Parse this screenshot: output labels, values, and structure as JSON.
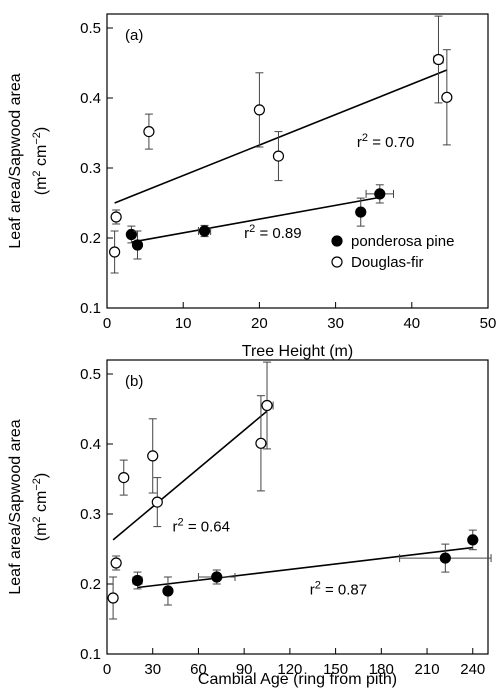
{
  "chart_data": [
    {
      "type": "scatter",
      "panel_label": "(a)",
      "xlabel": "Tree Height (m)",
      "ylabel_line1": "Leaf area/Sapwood area",
      "ylabel_line2": "(m",
      "ylabel_unit_a": "2",
      "ylabel_unit_b": " cm",
      "ylabel_unit_c": "−2",
      "ylabel_close": ")",
      "xlim": [
        0,
        50
      ],
      "ylim": [
        0.1,
        0.52
      ],
      "xticks": [
        0,
        10,
        20,
        30,
        40,
        50
      ],
      "xtick_labels": [
        "0",
        "10",
        "20",
        "30",
        "40",
        "50"
      ],
      "yticks": [
        0.1,
        0.2,
        0.3,
        0.4,
        0.5
      ],
      "ytick_labels": [
        "0.1",
        "0.2",
        "0.3",
        "0.4",
        "0.5"
      ],
      "legend": {
        "placement": "bottom-right",
        "entries": [
          {
            "name": "ponderosa pine",
            "marker": "filled"
          },
          {
            "name": "Douglas-fir",
            "marker": "open"
          }
        ]
      },
      "series": [
        {
          "name": "ponderosa pine",
          "marker": "filled",
          "points": [
            {
              "x": 3.2,
              "y": 0.205,
              "yerr": 0.012,
              "xerr": 0
            },
            {
              "x": 4.0,
              "y": 0.19,
              "yerr": 0.02,
              "xerr": 0
            },
            {
              "x": 12.8,
              "y": 0.21,
              "yerr": 0.008,
              "xerr": 0.8
            },
            {
              "x": 33.3,
              "y": 0.237,
              "yerr": 0.02,
              "xerr": 0
            },
            {
              "x": 35.8,
              "y": 0.263,
              "yerr": 0.013,
              "xerr": 1.8
            }
          ],
          "fit": {
            "x": [
              3.2,
              35.8
            ],
            "y": [
              0.194,
              0.258
            ]
          },
          "r2_prefix": "r",
          "r2_sup": "2",
          "r2_value": " = 0.89",
          "r2_pos": {
            "x": 18,
            "y": 0.2
          }
        },
        {
          "name": "Douglas-fir",
          "marker": "open",
          "points": [
            {
              "x": 1.0,
              "y": 0.18,
              "yerr": 0.03,
              "xerr": 0
            },
            {
              "x": 1.2,
              "y": 0.23,
              "yerr": 0.01,
              "xerr": 0
            },
            {
              "x": 5.5,
              "y": 0.352,
              "yerr": 0.025,
              "xerr": 0
            },
            {
              "x": 20.0,
              "y": 0.383,
              "yerr": 0.053,
              "xerr": 0
            },
            {
              "x": 22.5,
              "y": 0.317,
              "yerr": 0.035,
              "xerr": 0
            },
            {
              "x": 43.5,
              "y": 0.455,
              "yerr": 0.062,
              "xerr": 0.6
            },
            {
              "x": 44.6,
              "y": 0.401,
              "yerr": 0.068,
              "xerr": 0
            }
          ],
          "fit": {
            "x": [
              1.0,
              44.6
            ],
            "y": [
              0.25,
              0.44
            ]
          },
          "r2_prefix": "r",
          "r2_sup": "2",
          "r2_value": " = 0.70",
          "r2_pos": {
            "x": 32.8,
            "y": 0.33
          }
        }
      ]
    },
    {
      "type": "scatter",
      "panel_label": "(b)",
      "xlabel": "Cambial Age (ring from pith)",
      "ylabel_line1": "Leaf area/Sapwood area",
      "ylabel_line2": "(m",
      "ylabel_unit_a": "2",
      "ylabel_unit_b": " cm",
      "ylabel_unit_c": "−2",
      "ylabel_close": ")",
      "xlim": [
        0,
        250
      ],
      "ylim": [
        0.1,
        0.52
      ],
      "xticks": [
        0,
        30,
        60,
        90,
        120,
        150,
        180,
        210,
        240
      ],
      "xtick_labels": [
        "0",
        "30",
        "60",
        "90",
        "120",
        "150",
        "180",
        "210",
        "240"
      ],
      "yticks": [
        0.1,
        0.2,
        0.3,
        0.4,
        0.5
      ],
      "ytick_labels": [
        "0.1",
        "0.2",
        "0.3",
        "0.4",
        "0.5"
      ],
      "series": [
        {
          "name": "ponderosa pine",
          "marker": "filled",
          "points": [
            {
              "x": 20,
              "y": 0.205,
              "yerr": 0.012,
              "xerr": 3
            },
            {
              "x": 40,
              "y": 0.19,
              "yerr": 0.02,
              "xerr": 0
            },
            {
              "x": 72,
              "y": 0.21,
              "yerr": 0.01,
              "xerr": 12
            },
            {
              "x": 222,
              "y": 0.237,
              "yerr": 0.02,
              "xerr": 30
            },
            {
              "x": 240,
              "y": 0.263,
              "yerr": 0.014,
              "xerr": 0
            }
          ],
          "fit": {
            "x": [
              20,
              240
            ],
            "y": [
              0.195,
              0.252
            ]
          },
          "r2_prefix": "r",
          "r2_sup": "2",
          "r2_value": " = 0.87",
          "r2_pos": {
            "x": 133,
            "y": 0.185
          }
        },
        {
          "name": "Douglas-fir",
          "marker": "open",
          "points": [
            {
              "x": 4,
              "y": 0.18,
              "yerr": 0.03,
              "xerr": 0
            },
            {
              "x": 6,
              "y": 0.23,
              "yerr": 0.01,
              "xerr": 0
            },
            {
              "x": 11,
              "y": 0.352,
              "yerr": 0.025,
              "xerr": 0
            },
            {
              "x": 30,
              "y": 0.383,
              "yerr": 0.053,
              "xerr": 0
            },
            {
              "x": 33,
              "y": 0.317,
              "yerr": 0.035,
              "xerr": 0
            },
            {
              "x": 101,
              "y": 0.401,
              "yerr": 0.068,
              "xerr": 0
            },
            {
              "x": 105,
              "y": 0.455,
              "yerr": 0.062,
              "xerr": 4
            }
          ],
          "fit": {
            "x": [
              4,
              105
            ],
            "y": [
              0.263,
              0.447
            ]
          },
          "r2_prefix": "r",
          "r2_sup": "2",
          "r2_value": " = 0.64",
          "r2_pos": {
            "x": 43,
            "y": 0.275
          }
        }
      ]
    }
  ]
}
